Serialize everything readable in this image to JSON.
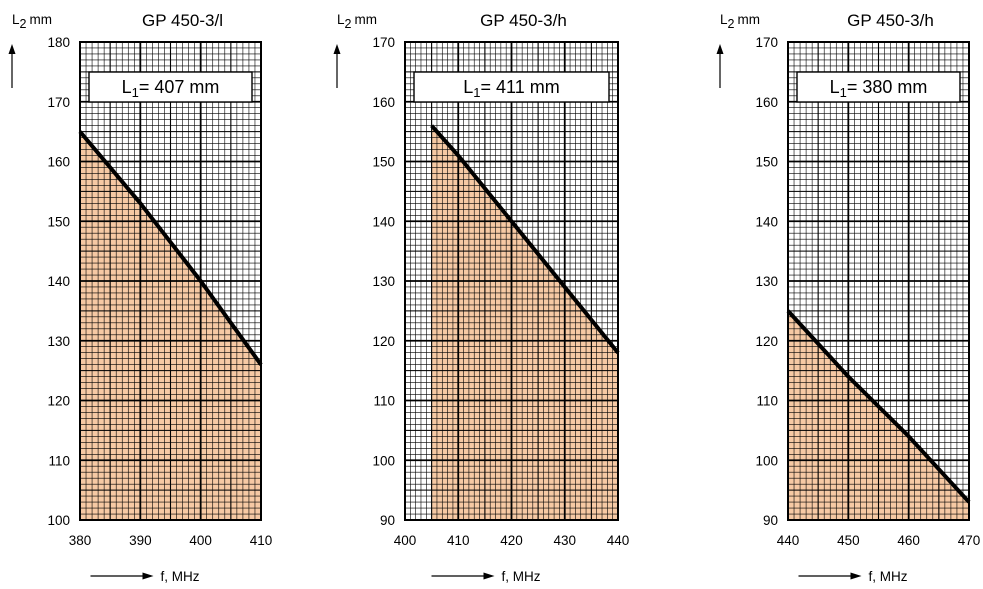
{
  "chart_data": [
    {
      "type": "area",
      "title": "GP 450-3/l",
      "ylabel": "L2 mm",
      "ylabel_main": "L",
      "ylabel_sub": "2",
      "ylabel_unit": "mm",
      "xlabel": "f, MHz",
      "annotation_main": "L",
      "annotation_sub": "1",
      "annotation_rest": "= 407 mm",
      "xlim": [
        380,
        410
      ],
      "ylim": [
        100,
        180
      ],
      "x_ticks": [
        380,
        390,
        400,
        410
      ],
      "y_ticks": [
        100,
        110,
        120,
        130,
        140,
        150,
        160,
        170,
        180
      ],
      "x": [
        380,
        390,
        400,
        410
      ],
      "y": [
        165,
        153,
        140,
        126
      ]
    },
    {
      "type": "area",
      "title": "GP 450-3/h",
      "ylabel": "L2 mm",
      "ylabel_main": "L",
      "ylabel_sub": "2",
      "ylabel_unit": "mm",
      "xlabel": "f, MHz",
      "annotation_main": "L",
      "annotation_sub": "1",
      "annotation_rest": "= 411 mm",
      "xlim": [
        400,
        440
      ],
      "ylim": [
        90,
        170
      ],
      "x_ticks": [
        400,
        410,
        420,
        430,
        440
      ],
      "y_ticks": [
        90,
        100,
        110,
        120,
        130,
        140,
        150,
        160,
        170
      ],
      "x": [
        405,
        410,
        420,
        430,
        440
      ],
      "y": [
        156,
        151,
        140,
        129,
        118
      ]
    },
    {
      "type": "area",
      "title": "GP 450-3/h",
      "ylabel": "L2 mm",
      "ylabel_main": "L",
      "ylabel_sub": "2",
      "ylabel_unit": "mm",
      "xlabel": "f, MHz",
      "annotation_main": "L",
      "annotation_sub": "1",
      "annotation_rest": "= 380 mm",
      "xlim": [
        440,
        470
      ],
      "ylim": [
        90,
        170
      ],
      "x_ticks": [
        440,
        450,
        460,
        470
      ],
      "y_ticks": [
        90,
        100,
        110,
        120,
        130,
        140,
        150,
        160,
        170
      ],
      "x": [
        440,
        450,
        460,
        470
      ],
      "y": [
        125,
        114,
        104,
        93
      ]
    }
  ],
  "colors": {
    "fill": "#f6c9a4",
    "grid_minor": "#000000",
    "grid_major": "#000000",
    "curve": "#000000"
  }
}
